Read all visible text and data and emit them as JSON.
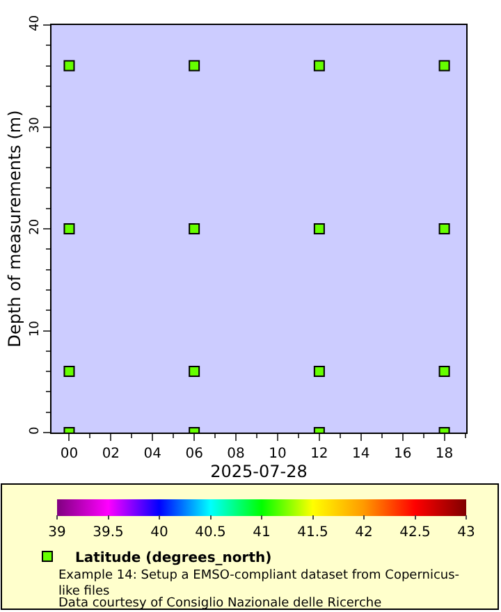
{
  "chart_data": {
    "type": "scatter",
    "xlabel": "2025-07-28",
    "ylabel": "Depth of measurements (m)",
    "x": [
      "2025-07-28T00:00",
      "2025-07-28T00:00",
      "2025-07-28T00:00",
      "2025-07-28T00:00",
      "2025-07-28T06:00",
      "2025-07-28T06:00",
      "2025-07-28T06:00",
      "2025-07-28T06:00",
      "2025-07-28T12:00",
      "2025-07-28T12:00",
      "2025-07-28T12:00",
      "2025-07-28T12:00",
      "2025-07-28T18:00",
      "2025-07-28T18:00",
      "2025-07-28T18:00",
      "2025-07-28T18:00"
    ],
    "series": [
      {
        "name": "Latitude (degrees_north)",
        "values": [
          0,
          6,
          20,
          36,
          0,
          6,
          20,
          36,
          0,
          6,
          20,
          36,
          0,
          6,
          20,
          36
        ],
        "cvalues": [
          41.2,
          41.2,
          41.2,
          41.2,
          41.2,
          41.2,
          41.2,
          41.2,
          41.2,
          41.2,
          41.2,
          41.2,
          41.2,
          41.2,
          41.2,
          41.2
        ]
      }
    ],
    "xlim": [
      "2025-07-27T23:09",
      "2025-07-28T19:03"
    ],
    "xticks": [
      {
        "value": "2025-07-28T00:00",
        "label": "00"
      },
      {
        "value": "2025-07-28T02:00",
        "label": "02"
      },
      {
        "value": "2025-07-28T04:00",
        "label": "04"
      },
      {
        "value": "2025-07-28T06:00",
        "label": "06"
      },
      {
        "value": "2025-07-28T08:00",
        "label": "08"
      },
      {
        "value": "2025-07-28T10:00",
        "label": "10"
      },
      {
        "value": "2025-07-28T12:00",
        "label": "12"
      },
      {
        "value": "2025-07-28T14:00",
        "label": "14"
      },
      {
        "value": "2025-07-28T16:00",
        "label": "16"
      },
      {
        "value": "2025-07-28T18:00",
        "label": "18"
      }
    ],
    "ylim": [
      0,
      40
    ],
    "yticks": [
      0,
      10,
      20,
      30,
      40
    ],
    "clim": [
      39,
      43
    ],
    "cticks": [
      39,
      39.5,
      40,
      40.5,
      41,
      41.5,
      42,
      42.5,
      43
    ],
    "marker": "square",
    "grid": false,
    "legend": "bottom left",
    "annotations": [
      "Example 14: Setup a EMSO-compliant dataset from Copernicus-like files",
      "Data courtesy of Consiglio Nazionale delle Ricerche"
    ]
  }
}
